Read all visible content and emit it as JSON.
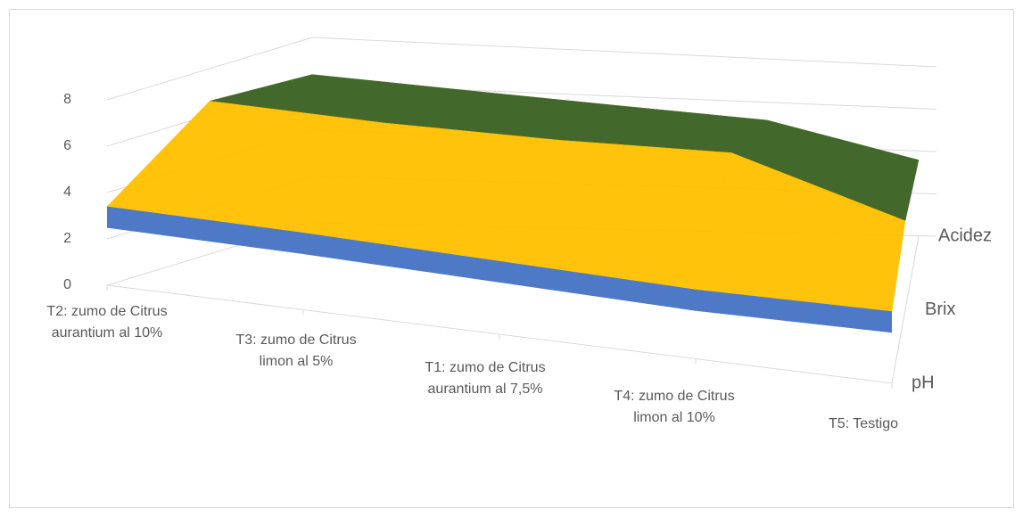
{
  "chart_data": {
    "type": "surface",
    "categories": [
      "T2: zumo de Citrus aurantium al 10%",
      "T3: zumo de Citrus limon al 5%",
      "T1: zumo de Citrus aurantium al 7,5%",
      "T4: zumo de Citrus limon al 10%",
      "T5: Testigo"
    ],
    "series": [
      {
        "name": "pH",
        "color": "#4472c4",
        "values": [
          3.4,
          3.4,
          3.3,
          3.2,
          3.4
        ]
      },
      {
        "name": "Brix",
        "color": "#ffc000",
        "values": [
          6.6,
          6.4,
          6.4,
          6.6,
          4.2
        ]
      },
      {
        "name": "Acidez",
        "color": "#43682b",
        "values": [
          6.4,
          6.0,
          5.6,
          5.2,
          3.6
        ]
      }
    ],
    "ylim": [
      0,
      8
    ],
    "yticks": [
      0,
      2,
      4,
      6,
      8
    ],
    "grid": true
  }
}
